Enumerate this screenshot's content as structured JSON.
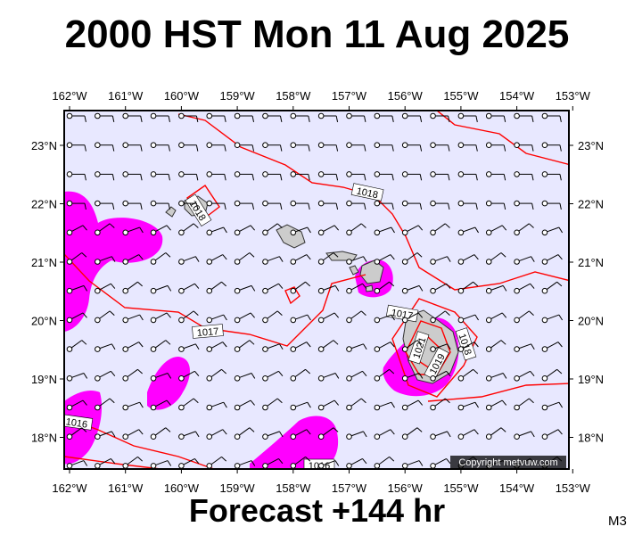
{
  "title": "2000 HST Mon 11 Aug 2025",
  "subtitle": "Forecast +144 hr",
  "model_label": "M3",
  "copyright": "Copyright metvuw.com",
  "colors": {
    "ocean": "#e8e8ff",
    "rain": "#ff00ff",
    "isobar": "#ff0000",
    "land": "#cccccc"
  },
  "map": {
    "lon_labels": [
      "162°W",
      "161°W",
      "160°W",
      "159°W",
      "158°W",
      "157°W",
      "156°W",
      "155°W",
      "154°W",
      "153°W"
    ],
    "lat_labels": [
      "23°N",
      "22°N",
      "21°N",
      "20°N",
      "19°N",
      "18°N"
    ],
    "isobar_labels": [
      "1018",
      "1018",
      "1017",
      "1017",
      "1016",
      "1021",
      "1019",
      "1018",
      "1016"
    ]
  }
}
